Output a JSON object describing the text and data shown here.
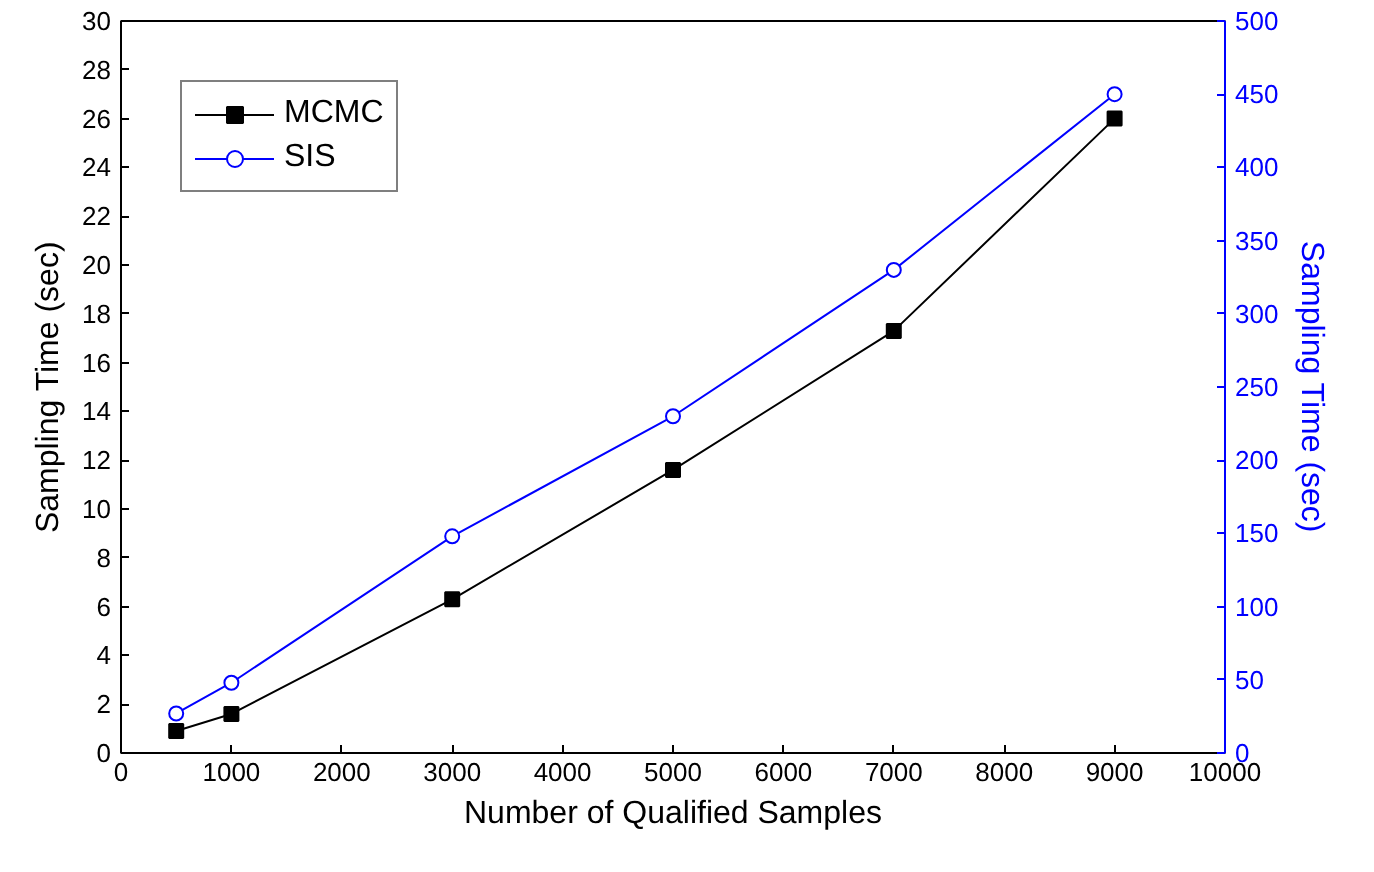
{
  "chart_data": {
    "type": "line",
    "xlabel": "Number of Qualified Samples",
    "ylabel": "Sampling Time (sec)",
    "y2label": "Sampling Time (sec)",
    "x": [
      500,
      1000,
      3000,
      5000,
      7000,
      9000
    ],
    "series": [
      {
        "name": "MCMC",
        "color": "#000000",
        "marker": "square",
        "values": [
          0.9,
          1.6,
          6.3,
          11.6,
          17.3,
          26
        ]
      },
      {
        "name": "SIS",
        "color": "#0000ff",
        "marker": "circle",
        "axis": "y2",
        "values": [
          27,
          48,
          148,
          230,
          330,
          450
        ]
      }
    ],
    "xlim": [
      0,
      10000
    ],
    "xticks": [
      0,
      1000,
      2000,
      3000,
      4000,
      5000,
      6000,
      7000,
      8000,
      9000,
      10000
    ],
    "ylim": [
      0,
      30
    ],
    "yticks": [
      0,
      2,
      4,
      6,
      8,
      10,
      12,
      14,
      16,
      18,
      20,
      22,
      24,
      26,
      28,
      30
    ],
    "y2lim": [
      0,
      500
    ],
    "y2ticks": [
      0,
      50,
      100,
      150,
      200,
      250,
      300,
      350,
      400,
      450,
      500
    ],
    "grid": false,
    "legend": "top left",
    "line_style": "solid"
  }
}
